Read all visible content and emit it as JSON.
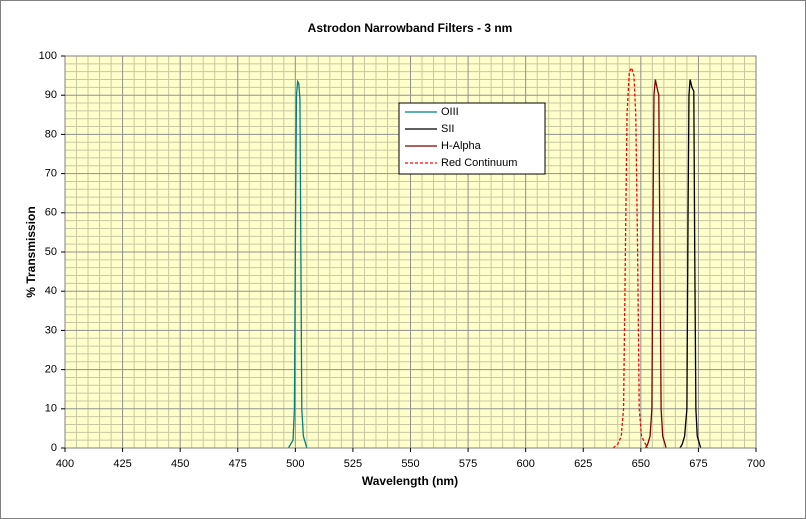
{
  "chart_data": {
    "type": "line",
    "title": "Astrodon Narrowband Filters - 3 nm",
    "x_label": "Wavelength (nm)",
    "y_label": "% Transmission",
    "xlim": [
      400,
      700
    ],
    "xticks": [
      400,
      425,
      450,
      475,
      500,
      525,
      550,
      575,
      600,
      625,
      650,
      675,
      700
    ],
    "ylim": [
      0,
      100
    ],
    "yticks": [
      0,
      10,
      20,
      30,
      40,
      50,
      60,
      70,
      80,
      90,
      100
    ],
    "grid": true,
    "legend": "top-right",
    "series": [
      {
        "name": "OIII",
        "color": "#008080",
        "dashed": false,
        "x": [
          497,
          498,
          499,
          499.6,
          500.1,
          500.5,
          501,
          501.5,
          502,
          502.4,
          502.8,
          503.5,
          504.5,
          505
        ],
        "values": [
          0,
          1,
          2,
          10,
          60,
          90,
          93.5,
          93,
          89,
          50,
          10,
          3,
          1,
          0
        ]
      },
      {
        "name": "SII",
        "color": "#000000",
        "dashed": false,
        "x": [
          667,
          668,
          669,
          670,
          670.5,
          670.9,
          671.4,
          672.2,
          673,
          673.4,
          673.9,
          674.5,
          675.5,
          676
        ],
        "values": [
          0,
          1,
          3,
          10,
          60,
          90,
          94,
          92,
          91,
          50,
          10,
          3,
          1,
          0
        ]
      },
      {
        "name": "H-Alpha",
        "color": "#800000",
        "dashed": false,
        "x": [
          652,
          653,
          654,
          654.8,
          655.3,
          655.7,
          656.3,
          657,
          657.8,
          658.3,
          658.8,
          659.5,
          660.5,
          661
        ],
        "values": [
          0,
          1,
          3,
          10,
          60,
          90,
          94,
          92,
          90,
          50,
          10,
          3,
          1,
          0
        ]
      },
      {
        "name": "Red Continuum",
        "color": "#ff0000",
        "dashed": true,
        "x": [
          638,
          640,
          641.5,
          642.5,
          643.3,
          644,
          645,
          646,
          647,
          647.8,
          648.6,
          649.3,
          650.3,
          652,
          653
        ],
        "values": [
          0,
          1,
          3,
          10,
          50,
          85,
          96,
          97,
          95,
          85,
          50,
          10,
          3,
          1,
          0
        ]
      }
    ]
  }
}
